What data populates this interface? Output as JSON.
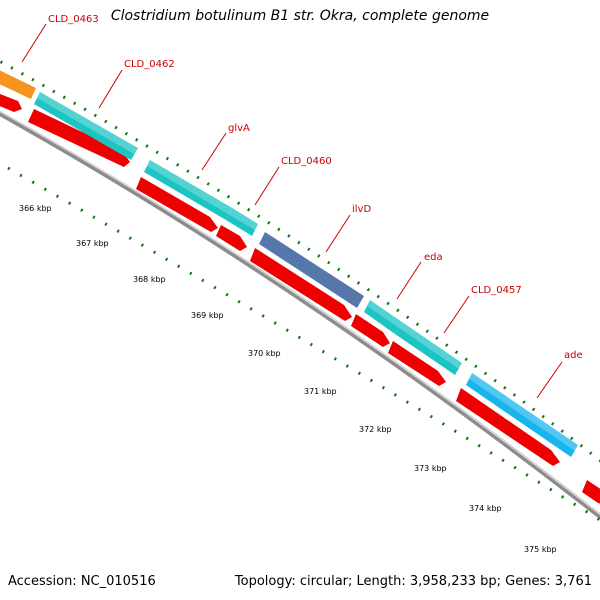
{
  "title": "Clostridium botulinum B1 str. Okra, complete genome",
  "footer": {
    "accession": "Accession: NC_010516",
    "summary": "Topology: circular; Length: 3,958,233 bp; Genes: 3,761"
  },
  "colors": {
    "backbone": "#8c8c8c",
    "cds": "#ee0000",
    "gene_teal": "#1cc4c4",
    "gene_blue": "#18b4ec",
    "gene_orange": "#f7941d",
    "gene_slate": "#5577aa",
    "tick": "#117711",
    "label": "#cc0000"
  },
  "gene_labels": [
    "CLD_0463",
    "CLD_0462",
    "glvA",
    "CLD_0460",
    "ilvD",
    "eda",
    "CLD_0457",
    "ade"
  ],
  "scale_labels": [
    "366 kbp",
    "367 kbp",
    "368 kbp",
    "369 kbp",
    "370 kbp",
    "371 kbp",
    "372 kbp",
    "373 kbp",
    "374 kbp",
    "375 kbp"
  ]
}
